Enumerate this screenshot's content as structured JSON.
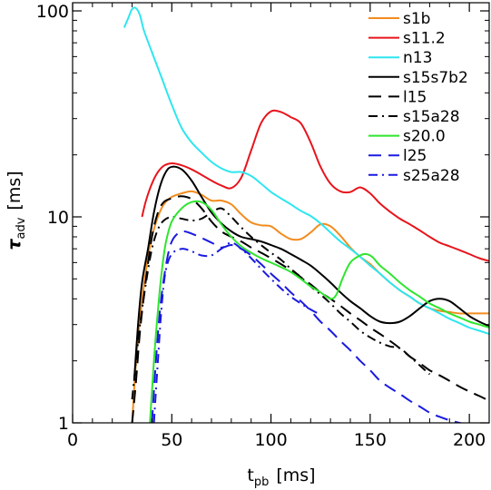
{
  "chart_data": {
    "type": "line",
    "xlabel": "t",
    "xlabel_sub": "pb",
    "xlabel_unit": "[ms]",
    "ylabel": "τ",
    "ylabel_sub": "adv",
    "ylabel_unit": "[ms]",
    "xlim": [
      0,
      210
    ],
    "ylim": [
      1,
      105
    ],
    "yscale": "log",
    "xticks": [
      0,
      50,
      100,
      150,
      200
    ],
    "xtick_labels": [
      "0",
      "50",
      "100",
      "150",
      "200"
    ],
    "yticks": [
      1,
      10,
      100
    ],
    "ytick_labels": [
      "1",
      "10",
      "100"
    ],
    "legend_position": "top-right",
    "series": [
      {
        "name": "s1b",
        "color": "#f28c1e",
        "dash": "solid",
        "x": [
          30,
          32,
          34,
          37,
          40,
          43,
          46,
          50,
          55,
          60,
          65,
          70,
          75,
          80,
          85,
          90,
          95,
          100,
          105,
          110,
          115,
          120,
          125,
          130,
          135,
          140,
          145,
          150,
          155,
          160,
          165,
          170,
          175,
          180,
          185,
          190,
          195,
          200,
          205,
          210
        ],
        "y": [
          1.0,
          2.0,
          3.2,
          5.5,
          8.0,
          10.0,
          11.5,
          12.5,
          13.0,
          13.3,
          12.8,
          12.0,
          12.0,
          11.5,
          10.3,
          9.4,
          9.1,
          9.0,
          8.3,
          7.8,
          7.8,
          8.4,
          9.2,
          9.0,
          8.1,
          7.1,
          6.4,
          5.9,
          5.3,
          4.8,
          4.4,
          4.1,
          3.8,
          3.6,
          3.5,
          3.45,
          3.4,
          3.4,
          3.4,
          3.4
        ]
      },
      {
        "name": "s11.2",
        "color": "#e8141c",
        "dash": "solid",
        "x": [
          35,
          37,
          40,
          43,
          46,
          50,
          55,
          60,
          65,
          70,
          75,
          80,
          85,
          90,
          95,
          100,
          105,
          110,
          115,
          120,
          125,
          130,
          135,
          140,
          145,
          150,
          155,
          160,
          165,
          170,
          175,
          180,
          185,
          190,
          195,
          200,
          205,
          210
        ],
        "y": [
          10.0,
          12.0,
          14.5,
          16.5,
          17.7,
          18.2,
          17.8,
          17.0,
          16.0,
          15.0,
          14.2,
          13.8,
          15.5,
          21.0,
          28.5,
          32.5,
          32.3,
          30.5,
          28.5,
          23.0,
          17.5,
          14.5,
          13.3,
          13.2,
          13.9,
          13.0,
          11.6,
          10.6,
          9.8,
          9.2,
          8.6,
          8.0,
          7.5,
          7.2,
          6.9,
          6.6,
          6.3,
          6.1
        ]
      },
      {
        "name": "n13",
        "color": "#2ee6f0",
        "dash": "solid",
        "x": [
          26,
          28,
          30,
          32,
          34,
          36,
          40,
          45,
          50,
          55,
          60,
          65,
          70,
          75,
          80,
          85,
          90,
          95,
          100,
          105,
          110,
          115,
          120,
          125,
          130,
          135,
          140,
          145,
          150,
          155,
          160,
          165,
          170,
          175,
          180,
          185,
          190,
          195,
          200,
          205,
          210
        ],
        "y": [
          83,
          92,
          102,
          103,
          95,
          80,
          63,
          47,
          35,
          27,
          23,
          20.5,
          18.5,
          17.2,
          16.5,
          16.5,
          15.8,
          14.5,
          13.2,
          12.3,
          11.5,
          10.7,
          10.1,
          9.3,
          8.4,
          7.6,
          7.0,
          6.4,
          5.8,
          5.3,
          4.8,
          4.4,
          4.1,
          3.8,
          3.6,
          3.4,
          3.2,
          3.05,
          2.9,
          2.8,
          2.7
        ]
      },
      {
        "name": "s15s7b2",
        "color": "#000000",
        "dash": "solid",
        "x": [
          31,
          33,
          35,
          38,
          41,
          44,
          47,
          50,
          55,
          60,
          65,
          70,
          75,
          80,
          85,
          90,
          95,
          100,
          105,
          110,
          115,
          120,
          125,
          130,
          135,
          140,
          145,
          150,
          155,
          160,
          165,
          170,
          175,
          180,
          185,
          190,
          195,
          200,
          205,
          210
        ],
        "y": [
          1.6,
          3.0,
          4.8,
          7.0,
          10.5,
          14.0,
          16.5,
          17.5,
          17.0,
          15.0,
          12.5,
          10.5,
          9.3,
          8.5,
          8.0,
          7.8,
          7.6,
          7.3,
          7.0,
          6.6,
          6.2,
          5.8,
          5.3,
          4.8,
          4.3,
          3.9,
          3.6,
          3.3,
          3.1,
          3.05,
          3.1,
          3.3,
          3.6,
          3.9,
          4.0,
          3.9,
          3.6,
          3.3,
          3.1,
          2.95
        ]
      },
      {
        "name": "l15",
        "color": "#000000",
        "dash": "14,8",
        "x": [
          30,
          32,
          34,
          37,
          40,
          43,
          46,
          50,
          55,
          60,
          65,
          70,
          75,
          80,
          85,
          90,
          95,
          100,
          105,
          110,
          115,
          120,
          125,
          130,
          135,
          140,
          145,
          150,
          155,
          160,
          165,
          170,
          175,
          180,
          185,
          190,
          195,
          200,
          205,
          210
        ],
        "y": [
          1.0,
          1.6,
          2.8,
          5.0,
          8.0,
          10.5,
          11.8,
          12.3,
          12.6,
          12.2,
          11.0,
          9.5,
          8.5,
          8.0,
          7.6,
          7.1,
          6.7,
          6.3,
          5.9,
          5.5,
          5.1,
          4.7,
          4.3,
          4.0,
          3.7,
          3.4,
          3.15,
          2.9,
          2.7,
          2.5,
          2.3,
          2.1,
          1.95,
          1.8,
          1.7,
          1.6,
          1.5,
          1.42,
          1.35,
          1.28
        ]
      },
      {
        "name": "s15a28",
        "color": "#000000",
        "dash": "10,5,2,5",
        "x": [
          30,
          32,
          34,
          37,
          40,
          43,
          46,
          50,
          55,
          60,
          65,
          70,
          75,
          80,
          85,
          90,
          95,
          100,
          105,
          110,
          115,
          120,
          125,
          130,
          135,
          140,
          145,
          150,
          155,
          160,
          165,
          170,
          175,
          180
        ],
        "y": [
          1.3,
          2.0,
          3.0,
          4.8,
          7.0,
          8.7,
          9.6,
          10.0,
          9.8,
          9.6,
          9.8,
          10.5,
          11.0,
          10.0,
          8.9,
          8.0,
          7.3,
          6.7,
          6.2,
          5.6,
          5.1,
          4.6,
          4.2,
          3.8,
          3.4,
          3.1,
          2.8,
          2.6,
          2.45,
          2.35,
          2.3,
          2.1,
          1.9,
          1.72
        ]
      },
      {
        "name": "s20.0",
        "color": "#2ee52e",
        "dash": "solid",
        "x": [
          39,
          41,
          43,
          45,
          47,
          50,
          55,
          60,
          65,
          70,
          75,
          80,
          85,
          90,
          95,
          100,
          105,
          110,
          115,
          120,
          125,
          130,
          133,
          136,
          140,
          145,
          148,
          151,
          155,
          160,
          165,
          170,
          175,
          180,
          185,
          190,
          195,
          200,
          205,
          210
        ],
        "y": [
          1.0,
          2.0,
          3.5,
          5.5,
          7.5,
          9.5,
          11.0,
          11.8,
          11.8,
          10.8,
          9.2,
          8.0,
          7.2,
          6.7,
          6.3,
          6.0,
          5.7,
          5.4,
          5.0,
          4.6,
          4.3,
          4.0,
          4.2,
          5.0,
          6.0,
          6.5,
          6.6,
          6.4,
          5.8,
          5.3,
          4.8,
          4.4,
          4.1,
          3.8,
          3.6,
          3.4,
          3.25,
          3.1,
          3.0,
          2.9
        ]
      },
      {
        "name": "l25",
        "color": "#1a1ae0",
        "dash": "14,8",
        "x": [
          40,
          42,
          44,
          46,
          48,
          50,
          53,
          56,
          60,
          65,
          70,
          75,
          80,
          85,
          90,
          95,
          100,
          105,
          110,
          115,
          120,
          125,
          130,
          135,
          140,
          145,
          150,
          155,
          160,
          165,
          170,
          175,
          180,
          185,
          190,
          195,
          200
        ],
        "y": [
          1.0,
          2.0,
          3.5,
          5.0,
          6.5,
          7.6,
          8.3,
          8.5,
          8.3,
          7.9,
          7.5,
          7.1,
          7.3,
          7.0,
          6.5,
          5.9,
          5.3,
          4.8,
          4.3,
          3.9,
          3.5,
          3.1,
          2.8,
          2.5,
          2.25,
          2.0,
          1.8,
          1.6,
          1.48,
          1.38,
          1.28,
          1.2,
          1.12,
          1.07,
          1.03,
          1.0,
          0.98
        ]
      },
      {
        "name": "s25a28",
        "color": "#1a1ae0",
        "dash": "10,5,2,5",
        "x": [
          41,
          43,
          45,
          47,
          50,
          55,
          60,
          65,
          70,
          75,
          80,
          85,
          90,
          95,
          100,
          105,
          110,
          115,
          120,
          125
        ],
        "y": [
          1.0,
          2.0,
          3.8,
          5.5,
          6.6,
          7.0,
          6.8,
          6.5,
          6.5,
          7.0,
          7.5,
          7.0,
          6.3,
          5.6,
          5.0,
          4.5,
          4.1,
          3.8,
          3.55,
          3.35
        ]
      }
    ]
  }
}
